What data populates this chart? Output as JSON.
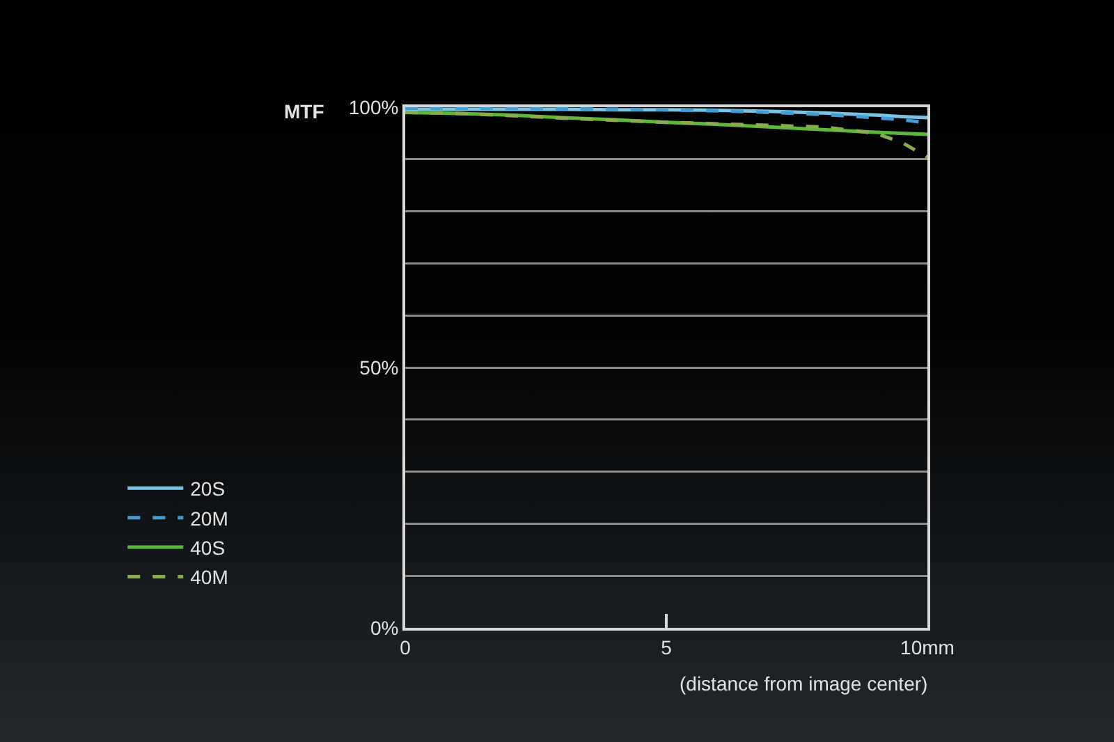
{
  "chart_data": {
    "type": "line",
    "ylabel": "MTF",
    "xlabel": "(distance from image center)",
    "x": [
      0,
      1,
      2,
      3,
      4,
      5,
      6,
      7,
      8,
      9,
      9.5,
      10
    ],
    "xlim": [
      0,
      10
    ],
    "xticks": [
      0,
      5,
      {
        "value": 10,
        "label": "10mm"
      }
    ],
    "ylim": [
      0,
      100
    ],
    "yticks": [
      {
        "value": 0,
        "label": "0%"
      },
      {
        "value": 10,
        "label": null
      },
      {
        "value": 20,
        "label": null
      },
      {
        "value": 30,
        "label": null
      },
      {
        "value": 40,
        "label": null
      },
      {
        "value": 50,
        "label": "50%"
      },
      {
        "value": 60,
        "label": null
      },
      {
        "value": 70,
        "label": null
      },
      {
        "value": 80,
        "label": null
      },
      {
        "value": 90,
        "label": null
      },
      {
        "value": 100,
        "label": "100%"
      }
    ],
    "grid": "y",
    "legend": "left",
    "series": [
      {
        "name": "20S",
        "color": "#7cc4e4",
        "line_style": "solid",
        "values": [
          99.6,
          99.6,
          99.6,
          99.6,
          99.5,
          99.5,
          99.4,
          99.2,
          98.9,
          98.5,
          98.2,
          98
        ]
      },
      {
        "name": "20M",
        "color": "#3d9fd6",
        "line_style": "dashed",
        "values": [
          99.8,
          99.8,
          99.8,
          99.7,
          99.6,
          99.5,
          99.3,
          99,
          98.6,
          98,
          97.6,
          97
        ]
      },
      {
        "name": "40S",
        "color": "#5cb83a",
        "line_style": "solid",
        "values": [
          99,
          98.8,
          98.5,
          98,
          97.6,
          97.1,
          96.7,
          96.2,
          95.7,
          95.2,
          95,
          94.8
        ]
      },
      {
        "name": "40M",
        "color": "#8bab4f",
        "line_style": "dashed",
        "values": [
          99,
          98.8,
          98.4,
          97.9,
          97.5,
          97.1,
          96.8,
          96.5,
          96.2,
          95,
          93.3,
          90.4
        ]
      }
    ]
  }
}
